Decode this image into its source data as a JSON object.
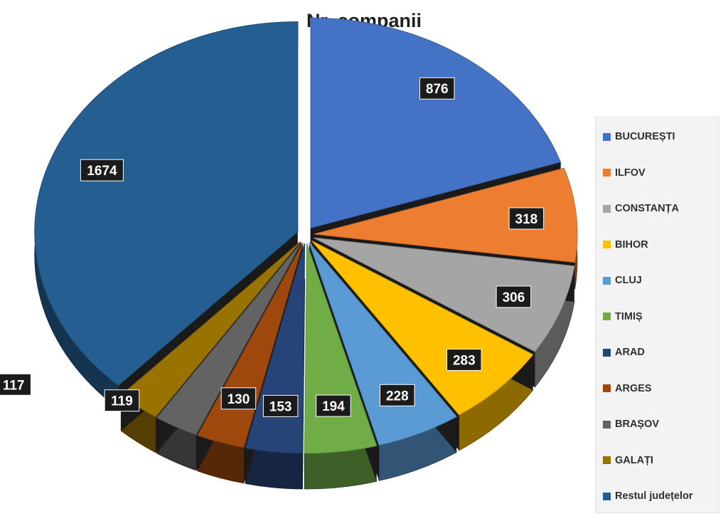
{
  "chart_data": {
    "type": "pie",
    "title": "Nr. companii",
    "legend_position": "right",
    "slices": [
      {
        "name": "BUCUREȘTI",
        "value": 876,
        "color": "#4472c4"
      },
      {
        "name": "ILFOV",
        "value": 318,
        "color": "#ed7d31"
      },
      {
        "name": "CONSTANȚA",
        "value": 306,
        "color": "#a5a5a5"
      },
      {
        "name": "BIHOR",
        "value": 283,
        "color": "#ffc000"
      },
      {
        "name": "CLUJ",
        "value": 228,
        "color": "#5b9bd5"
      },
      {
        "name": "TIMIȘ",
        "value": 194,
        "color": "#70ad47"
      },
      {
        "name": "ARAD",
        "value": 153,
        "color": "#264478"
      },
      {
        "name": "ARGES",
        "value": 130,
        "color": "#9e480e"
      },
      {
        "name": "BRAȘOV",
        "value": 119,
        "color": "#636363"
      },
      {
        "name": "GALAȚI",
        "value": 117,
        "color": "#997300"
      },
      {
        "name": "Restul județelor",
        "value": 1674,
        "color": "#255e91"
      }
    ]
  }
}
